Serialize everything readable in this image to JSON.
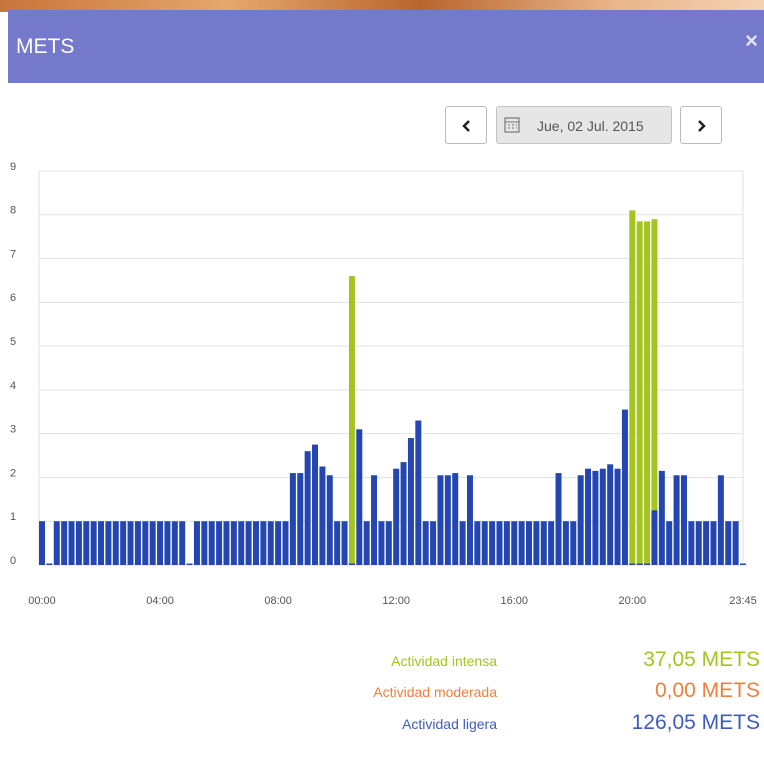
{
  "header": {
    "title": "METS",
    "close": "×"
  },
  "date_nav": {
    "date": "Jue, 02 Jul. 2015"
  },
  "chart_data": {
    "type": "bar",
    "categories": [
      "00:00",
      null,
      null,
      null,
      null,
      null,
      null,
      null,
      null,
      null,
      null,
      null,
      null,
      null,
      null,
      null,
      "04:00",
      null,
      null,
      null,
      null,
      null,
      null,
      null,
      null,
      null,
      null,
      null,
      null,
      null,
      null,
      null,
      "08:00",
      null,
      null,
      null,
      null,
      null,
      null,
      null,
      null,
      null,
      null,
      null,
      null,
      null,
      null,
      null,
      "12:00",
      null,
      null,
      null,
      null,
      null,
      null,
      null,
      null,
      null,
      null,
      null,
      null,
      null,
      null,
      null,
      "16:00",
      null,
      null,
      null,
      null,
      null,
      null,
      null,
      null,
      null,
      null,
      null,
      null,
      null,
      null,
      null,
      "20:00",
      null,
      null,
      null,
      null,
      null,
      null,
      null,
      null,
      null,
      null,
      null,
      null,
      null,
      null,
      "23:45"
    ],
    "series": [
      {
        "color": "#a4c520",
        "values": [
          null,
          null,
          null,
          null,
          null,
          null,
          null,
          null,
          null,
          null,
          null,
          null,
          null,
          null,
          null,
          null,
          null,
          null,
          null,
          null,
          null,
          null,
          null,
          null,
          null,
          null,
          null,
          null,
          null,
          null,
          null,
          null,
          null,
          null,
          null,
          null,
          null,
          null,
          null,
          null,
          null,
          null,
          6.6,
          null,
          null,
          null,
          null,
          null,
          null,
          null,
          null,
          null,
          null,
          null,
          null,
          null,
          null,
          null,
          null,
          null,
          null,
          null,
          null,
          null,
          null,
          null,
          null,
          null,
          null,
          null,
          null,
          null,
          null,
          null,
          null,
          null,
          null,
          null,
          null,
          null,
          8.1,
          7.85,
          7.85,
          7.9,
          null,
          null,
          null,
          null,
          null,
          null,
          null,
          null,
          null,
          null,
          null,
          null
        ]
      },
      {
        "color": "#2446b0",
        "values": [
          1,
          0,
          1,
          1,
          1,
          1,
          1,
          1,
          1,
          1,
          1,
          1,
          1,
          1,
          1,
          1,
          1,
          1,
          1,
          1,
          0,
          1,
          1,
          1,
          1,
          1,
          1,
          1,
          1,
          1,
          1,
          1,
          1,
          1,
          2.1,
          2.1,
          2.6,
          2.75,
          2.25,
          2.05,
          1,
          1,
          0,
          3.1,
          1,
          2.05,
          1,
          1,
          2.2,
          2.35,
          2.9,
          3.3,
          1,
          1,
          2.05,
          2.05,
          2.1,
          1,
          2.05,
          1,
          1,
          1,
          1,
          1,
          1,
          1,
          1,
          1,
          1,
          1,
          2.1,
          1,
          1,
          2.05,
          2.2,
          2.15,
          2.2,
          2.3,
          2.2,
          3.55,
          0,
          0,
          0,
          1.25,
          2.15,
          1,
          2.05,
          2.05,
          1,
          1,
          1,
          1,
          2.05,
          1,
          1,
          0
        ]
      }
    ],
    "ylim": [
      0,
      9
    ],
    "yticks": [
      0,
      1,
      2,
      3,
      4,
      5,
      6,
      7,
      8,
      9
    ],
    "grid": true
  },
  "summary": [
    {
      "label": "Actividad intensa",
      "value": "37,05 METS",
      "color": "#a4c520"
    },
    {
      "label": "Actividad moderada",
      "value": "0,00 METS",
      "color": "#f07f3c"
    },
    {
      "label": "Actividad ligera",
      "value": "126,05 METS",
      "color": "#3e5bbf"
    }
  ]
}
